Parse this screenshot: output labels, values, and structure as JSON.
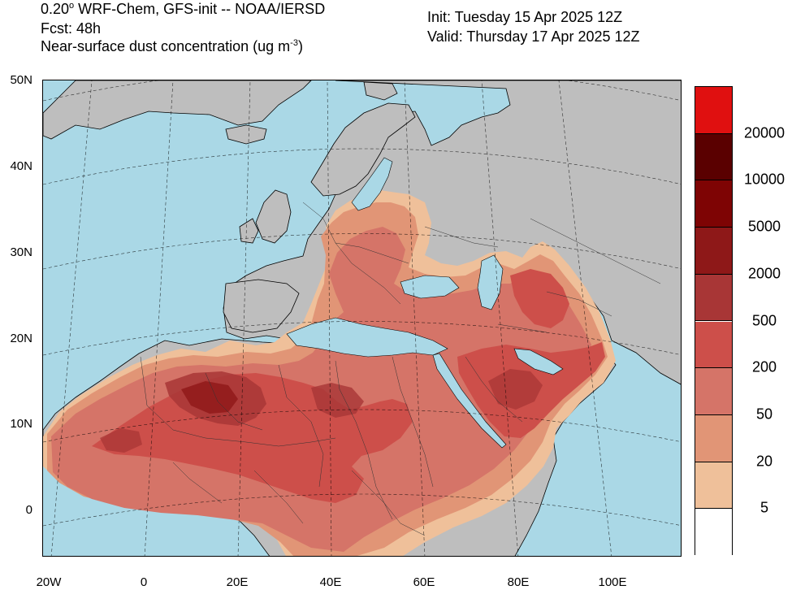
{
  "header": {
    "model_prefix": "0.20",
    "degree": "o",
    "model_rest": " WRF-Chem, GFS-init -- NOAA/IERSD",
    "forecast": "Fcst: 48h",
    "variable_prefix": "Near-surface dust concentration (ug m",
    "variable_exp": "-3",
    "variable_suffix": ")",
    "init": "Init: Tuesday 15 Apr 2025  12Z",
    "valid": "Valid: Thursday 17 Apr 2025  12Z"
  },
  "lat_labels": [
    "50N",
    "40N",
    "30N",
    "20N",
    "10N",
    "0"
  ],
  "lon_labels": [
    "20W",
    "0",
    "20E",
    "40E",
    "60E",
    "80E",
    "100E"
  ],
  "colorbar": {
    "labels": [
      "20000",
      "10000",
      "5000",
      "2000",
      "500",
      "200",
      "50",
      "20",
      "5"
    ],
    "colors": [
      "#e01010",
      "#5a0000",
      "#7e0404",
      "#8e1818",
      "#a83636",
      "#cd4f4a",
      "#d57468",
      "#e19576",
      "#efc09a",
      "#ffffff"
    ]
  },
  "map_colors": {
    "ocean": "#aad8e6",
    "land": "#bebebe",
    "grid": "#000000"
  }
}
